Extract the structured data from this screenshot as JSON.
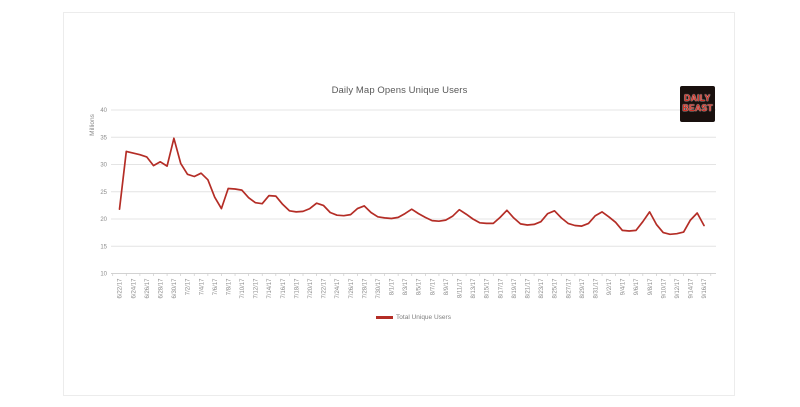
{
  "window": {
    "background": "#ffffff"
  },
  "logo": {
    "line1": "DAILY",
    "line2": "BEAST",
    "background": "#19100e",
    "text_color": "#d23227"
  },
  "chart_data": {
    "type": "line",
    "title": "Daily Map Opens Unique Users",
    "y_axis_label": "Millions",
    "xlabel": "",
    "ylabel": "Millions",
    "ylim": [
      10,
      40
    ],
    "yticks": [
      40,
      35,
      30,
      25,
      20,
      15,
      10
    ],
    "grid": true,
    "line_color": "#b42d26",
    "label_color": "#8c8c8c",
    "title_color": "#595959",
    "legend": {
      "position": "bottom-center",
      "label": "Total Unique Users"
    },
    "x_tick_labels": [
      "6/22/17",
      "6/24/17",
      "6/26/17",
      "6/28/17",
      "6/30/17",
      "7/2/17",
      "7/4/17",
      "7/6/17",
      "7/8/17",
      "7/10/17",
      "7/12/17",
      "7/14/17",
      "7/16/17",
      "7/18/17",
      "7/20/17",
      "7/22/17",
      "7/24/17",
      "7/26/17",
      "7/28/17",
      "7/30/17",
      "8/1/17",
      "8/3/17",
      "8/5/17",
      "8/7/17",
      "8/9/17",
      "8/11/17",
      "8/13/17",
      "8/15/17",
      "8/17/17",
      "8/19/17",
      "8/21/17",
      "8/23/17",
      "8/25/17",
      "8/27/17",
      "8/29/17",
      "8/31/17",
      "9/2/17",
      "9/4/17",
      "9/6/17",
      "9/8/17",
      "9/10/17",
      "9/12/17",
      "9/14/17",
      "9/16/17"
    ],
    "x": [
      "6/22/17",
      "6/23/17",
      "6/24/17",
      "6/25/17",
      "6/26/17",
      "6/27/17",
      "6/28/17",
      "6/29/17",
      "6/30/17",
      "7/1/17",
      "7/2/17",
      "7/3/17",
      "7/4/17",
      "7/5/17",
      "7/6/17",
      "7/7/17",
      "7/8/17",
      "7/9/17",
      "7/10/17",
      "7/11/17",
      "7/12/17",
      "7/13/17",
      "7/14/17",
      "7/15/17",
      "7/16/17",
      "7/17/17",
      "7/18/17",
      "7/19/17",
      "7/20/17",
      "7/21/17",
      "7/22/17",
      "7/23/17",
      "7/24/17",
      "7/25/17",
      "7/26/17",
      "7/27/17",
      "7/28/17",
      "7/29/17",
      "7/30/17",
      "7/31/17",
      "8/1/17",
      "8/2/17",
      "8/3/17",
      "8/4/17",
      "8/5/17",
      "8/6/17",
      "8/7/17",
      "8/8/17",
      "8/9/17",
      "8/10/17",
      "8/11/17",
      "8/12/17",
      "8/13/17",
      "8/14/17",
      "8/15/17",
      "8/16/17",
      "8/17/17",
      "8/18/17",
      "8/19/17",
      "8/20/17",
      "8/21/17",
      "8/22/17",
      "8/23/17",
      "8/24/17",
      "8/25/17",
      "8/26/17",
      "8/27/17",
      "8/28/17",
      "8/29/17",
      "8/30/17",
      "8/31/17",
      "9/1/17",
      "9/2/17",
      "9/3/17",
      "9/4/17",
      "9/5/17",
      "9/6/17",
      "9/7/17",
      "9/8/17",
      "9/9/17",
      "9/10/17",
      "9/11/17",
      "9/12/17",
      "9/13/17",
      "9/14/17",
      "9/15/17",
      "9/16/17"
    ],
    "series": [
      {
        "name": "Total Unique Users",
        "color": "#b42d26",
        "values": [
          21.8,
          32.4,
          32.1,
          31.8,
          31.4,
          29.8,
          30.5,
          29.7,
          34.8,
          30.2,
          28.2,
          27.8,
          28.4,
          27.2,
          24.0,
          21.9,
          25.6,
          25.5,
          25.3,
          23.9,
          23.0,
          22.8,
          24.3,
          24.2,
          22.7,
          21.5,
          21.3,
          21.4,
          21.9,
          22.9,
          22.5,
          21.2,
          20.7,
          20.6,
          20.8,
          21.9,
          22.4,
          21.2,
          20.4,
          20.2,
          20.1,
          20.3,
          21.0,
          21.8,
          21.0,
          20.3,
          19.7,
          19.6,
          19.8,
          20.5,
          21.7,
          20.9,
          20.0,
          19.3,
          19.2,
          19.2,
          20.3,
          21.6,
          20.2,
          19.1,
          18.9,
          19.0,
          19.5,
          21.0,
          21.5,
          20.2,
          19.2,
          18.8,
          18.7,
          19.2,
          20.6,
          21.3,
          20.4,
          19.4,
          17.9,
          17.8,
          17.9,
          19.5,
          21.3,
          19.0,
          17.5,
          17.2,
          17.3,
          17.6,
          19.8,
          21.1,
          18.8
        ]
      }
    ]
  }
}
